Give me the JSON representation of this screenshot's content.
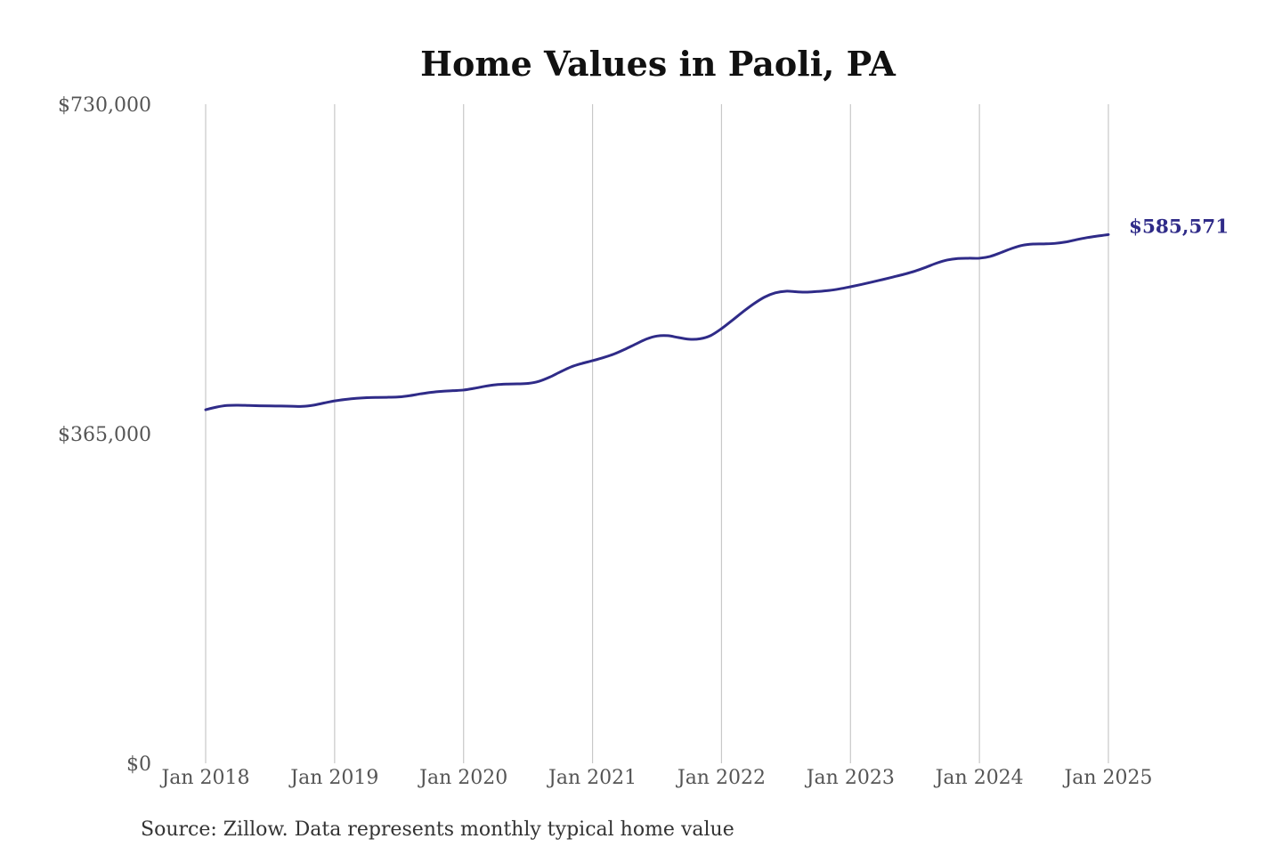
{
  "chart_data": {
    "type": "line",
    "title": "Home Values in Paoli, PA",
    "x": [
      "2018-01",
      "2018-02",
      "2018-03",
      "2018-04",
      "2018-05",
      "2018-06",
      "2018-07",
      "2018-08",
      "2018-09",
      "2018-10",
      "2018-11",
      "2018-12",
      "2019-01",
      "2019-02",
      "2019-03",
      "2019-04",
      "2019-05",
      "2019-06",
      "2019-07",
      "2019-08",
      "2019-09",
      "2019-10",
      "2019-11",
      "2019-12",
      "2020-01",
      "2020-02",
      "2020-03",
      "2020-04",
      "2020-05",
      "2020-06",
      "2020-07",
      "2020-08",
      "2020-09",
      "2020-10",
      "2020-11",
      "2020-12",
      "2021-01",
      "2021-02",
      "2021-03",
      "2021-04",
      "2021-05",
      "2021-06",
      "2021-07",
      "2021-08",
      "2021-09",
      "2021-10",
      "2021-11",
      "2021-12",
      "2022-01",
      "2022-02",
      "2022-03",
      "2022-04",
      "2022-05",
      "2022-06",
      "2022-07",
      "2022-08",
      "2022-09",
      "2022-10",
      "2022-11",
      "2022-12",
      "2023-01",
      "2023-02",
      "2023-03",
      "2023-04",
      "2023-05",
      "2023-06",
      "2023-07",
      "2023-08",
      "2023-09",
      "2023-10",
      "2023-11",
      "2023-12",
      "2024-01",
      "2024-02",
      "2024-03",
      "2024-04",
      "2024-05",
      "2024-06",
      "2024-07",
      "2024-08",
      "2024-09",
      "2024-10",
      "2024-11",
      "2024-12",
      "2025-01"
    ],
    "series": [
      {
        "values": [
          391600,
          394500,
          396300,
          396600,
          396300,
          396000,
          395800,
          395700,
          395500,
          395300,
          396600,
          399000,
          401400,
          403000,
          404200,
          404900,
          405200,
          405400,
          405800,
          407200,
          409200,
          410900,
          412000,
          412700,
          413400,
          415300,
          417600,
          419300,
          420000,
          420200,
          420700,
          423000,
          427600,
          433500,
          439000,
          442800,
          445900,
          449300,
          453300,
          458500,
          464200,
          469800,
          473200,
          473600,
          471500,
          469700,
          470200,
          473800,
          481400,
          490600,
          500100,
          508900,
          516300,
          521000,
          522900,
          522200,
          521900,
          522600,
          523700,
          525500,
          527800,
          530300,
          533000,
          535800,
          538700,
          541700,
          545100,
          549300,
          553900,
          557400,
          559100,
          559400,
          559400,
          561400,
          565600,
          570200,
          573700,
          575100,
          575300,
          575800,
          577300,
          579900,
          582200,
          584000,
          585571
        ]
      }
    ],
    "xlim": [
      "2018-01",
      "2025-01"
    ],
    "ylim": [
      0,
      730000
    ],
    "xticks": {
      "values": [
        "2018-01",
        "2019-01",
        "2020-01",
        "2021-01",
        "2022-01",
        "2023-01",
        "2024-01",
        "2025-01"
      ],
      "labels": [
        "Jan 2018",
        "Jan 2019",
        "Jan 2020",
        "Jan 2021",
        "Jan 2022",
        "Jan 2023",
        "Jan 2024",
        "Jan 2025"
      ]
    },
    "yticks": {
      "values": [
        0,
        365000,
        730000
      ],
      "labels": [
        "$0",
        "$365,000",
        "$730,000"
      ]
    },
    "data_labels": [
      {
        "x": "2025-01",
        "y": 585571,
        "text": "$585,571"
      }
    ],
    "grid": {
      "x": true,
      "y": false
    }
  },
  "source": "Source: Zillow. Data represents monthly typical home value",
  "colors": {
    "background": "#ffffff",
    "title": "#111111",
    "tick_label": "#555555",
    "gridline": "#c8c8c8",
    "line": "#2f2b88",
    "source": "#333333"
  }
}
